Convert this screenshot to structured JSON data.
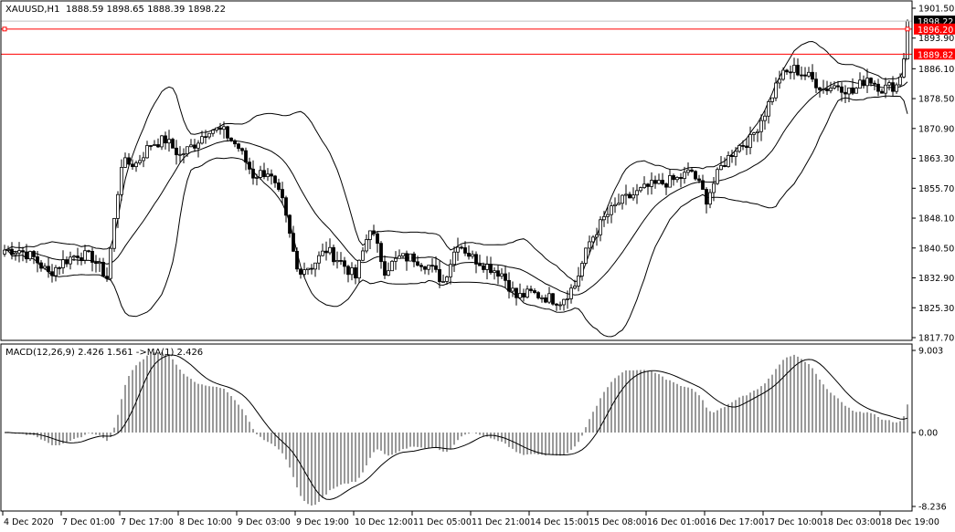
{
  "header": {
    "symbol_tf": "XAUUSD,H1",
    "ohlc": "1888.59 1898.65 1888.39 1898.22"
  },
  "macd_header": "MACD(12,26,9) 2.426 1.561  ->MA(1) 2.426",
  "colors": {
    "background": "#ffffff",
    "foreground": "#000000",
    "level_line": "#ff0000",
    "ask_line": "#c0c0c0",
    "bid_label": "#000000"
  },
  "chart_data": {
    "type": "candlestick",
    "symbol": "XAUUSD",
    "timeframe": "H1",
    "price_axis": {
      "ticks": [
        "1901.50",
        "1893.90",
        "1886.10",
        "1878.50",
        "1870.90",
        "1863.30",
        "1855.70",
        "1848.10",
        "1840.50",
        "1832.90",
        "1825.30",
        "1817.70"
      ],
      "range": [
        1817.7,
        1901.5
      ]
    },
    "time_axis": {
      "ticks": [
        "4 Dec 2020",
        "7 Dec 01:00",
        "7 Dec 17:00",
        "8 Dec 10:00",
        "9 Dec 03:00",
        "9 Dec 19:00",
        "10 Dec 12:00",
        "11 Dec 05:00",
        "11 Dec 21:00",
        "14 Dec 15:00",
        "15 Dec 08:00",
        "16 Dec 01:00",
        "16 Dec 17:00",
        "17 Dec 10:00",
        "18 Dec 03:00",
        "18 Dec 19:00"
      ]
    },
    "close_approx_every_4_bars": [
      1840,
      1840,
      1838,
      1834,
      1837,
      1839,
      1838,
      1833,
      1862,
      1862,
      1867,
      1868,
      1864,
      1867,
      1871,
      1870,
      1866,
      1859,
      1860,
      1852,
      1835,
      1836,
      1840,
      1837,
      1833,
      1846,
      1835,
      1838,
      1838,
      1836,
      1832,
      1842,
      1838,
      1836,
      1834,
      1828,
      1829,
      1828,
      1827,
      1831,
      1842,
      1848,
      1852,
      1854,
      1856,
      1857,
      1858,
      1860,
      1853,
      1861,
      1866,
      1868,
      1875,
      1884,
      1886,
      1884,
      1881,
      1882,
      1880,
      1884,
      1881,
      1882
    ],
    "last_bar": {
      "open": 1888.59,
      "high": 1898.65,
      "low": 1888.39,
      "close": 1898.22
    },
    "price_labels": {
      "bid": "1898.22",
      "level_1": "1896.20",
      "level_2": "1889.82"
    },
    "levels": [
      1896.2,
      1889.82
    ],
    "indicators": [
      "Bollinger Bands",
      "MACD(12,26,9)"
    ],
    "macd_axis": {
      "ticks": [
        "9.003",
        "0.00",
        "-8.236"
      ],
      "range": [
        -8.236,
        9.003
      ]
    }
  }
}
